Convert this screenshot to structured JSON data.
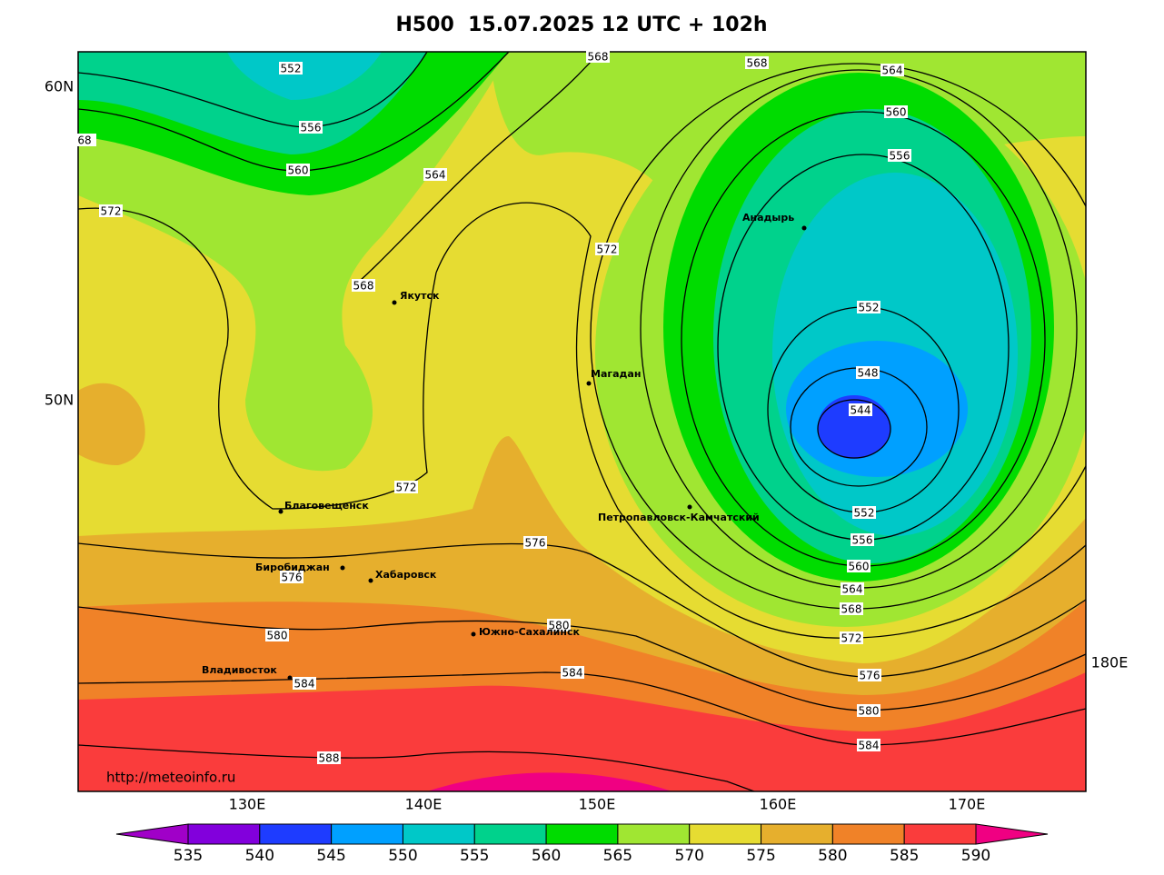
{
  "title": "H500  15.07.2025 12 UTC + 102h",
  "url": "http://meteoinfo.ru",
  "lat_labels": [
    "60N",
    "50N"
  ],
  "lon_labels": [
    "130E",
    "140E",
    "150E",
    "160E",
    "170E",
    "180E"
  ],
  "cities": [
    "Якутск",
    "Магадан",
    "Анадырь",
    "Благовещенск",
    "Петропавловск-Камчатский",
    "Биробиджан",
    "Хабаровск",
    "Южно-Сахалинск",
    "Владивосток"
  ],
  "contour_labels": [
    552,
    556,
    560,
    564,
    568,
    568,
    564,
    560,
    556,
    572,
    568,
    572,
    552,
    548,
    544,
    572,
    552,
    556,
    576,
    576,
    560,
    564,
    568,
    580,
    580,
    572,
    576,
    584,
    584,
    580,
    584,
    588,
    68
  ],
  "colorbar": {
    "levels": [
      535,
      540,
      545,
      550,
      555,
      560,
      565,
      570,
      575,
      580,
      585,
      590
    ],
    "colors": [
      "#a000c8",
      "#8200dc",
      "#1e3cff",
      "#00a0ff",
      "#00c8c8",
      "#00d28c",
      "#00dc00",
      "#a0e632",
      "#e6dc32",
      "#e6af2d",
      "#f08228",
      "#fa3c3c",
      "#f00082"
    ]
  }
}
